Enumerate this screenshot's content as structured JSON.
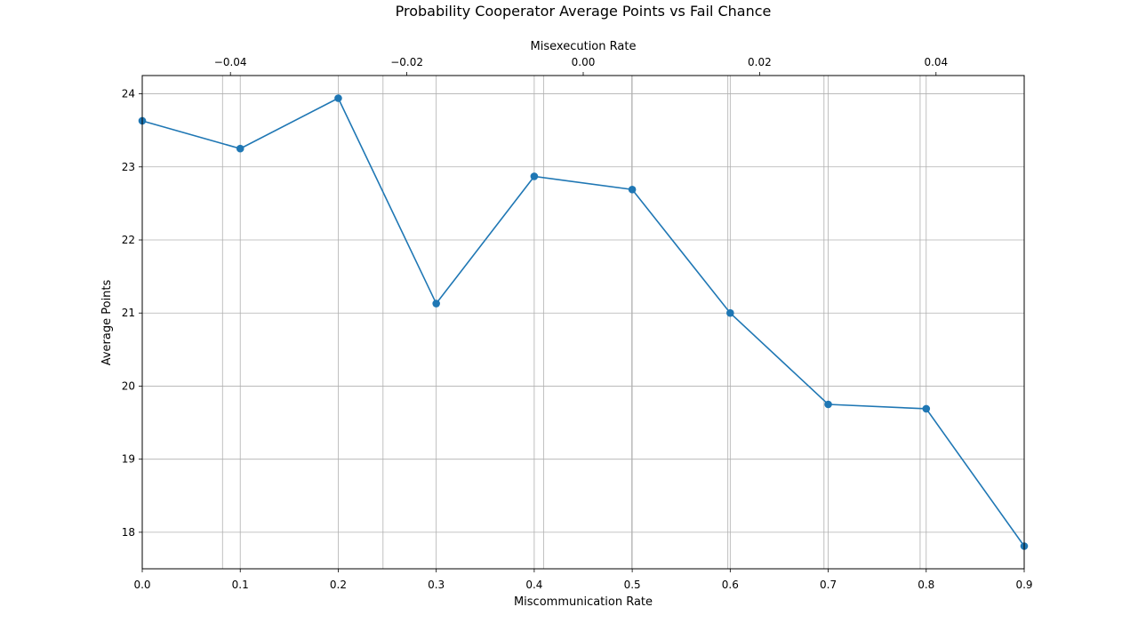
{
  "chart_data": {
    "type": "line",
    "title": "Probability Cooperator Average Points vs Fail Chance",
    "xlabel": "Miscommunication Rate",
    "ylabel": "Average Points",
    "x2label": "Misexecution Rate",
    "xlim": [
      0.0,
      0.9
    ],
    "ylim": [
      17.5,
      24.25
    ],
    "x2lim": [
      -0.05,
      0.05
    ],
    "xticks": [
      0.0,
      0.1,
      0.2,
      0.3,
      0.4,
      0.5,
      0.6,
      0.7,
      0.8,
      0.9
    ],
    "xtick_labels": [
      "0.0",
      "0.1",
      "0.2",
      "0.3",
      "0.4",
      "0.5",
      "0.6",
      "0.7",
      "0.8",
      "0.9"
    ],
    "yticks": [
      18,
      19,
      20,
      21,
      22,
      23,
      24
    ],
    "ytick_labels": [
      "18",
      "19",
      "20",
      "21",
      "22",
      "23",
      "24"
    ],
    "x2ticks": [
      -0.04,
      -0.02,
      0.0,
      0.02,
      0.04
    ],
    "x2tick_labels": [
      "−0.04",
      "−0.02",
      "0.00",
      "0.02",
      "0.04"
    ],
    "x2_grid_values": [
      -0.0409,
      -0.0227,
      -0.0045,
      0.0055,
      0.0164,
      0.0273,
      0.0382
    ],
    "grid": true,
    "series": [
      {
        "color": "#1f77b4",
        "marker": "circle",
        "x": [
          0.0,
          0.1,
          0.2,
          0.3,
          0.4,
          0.5,
          0.6,
          0.7,
          0.8,
          0.9
        ],
        "values": [
          23.63,
          23.25,
          23.94,
          21.13,
          22.87,
          22.69,
          21.0,
          19.75,
          19.69,
          17.81
        ]
      }
    ]
  }
}
